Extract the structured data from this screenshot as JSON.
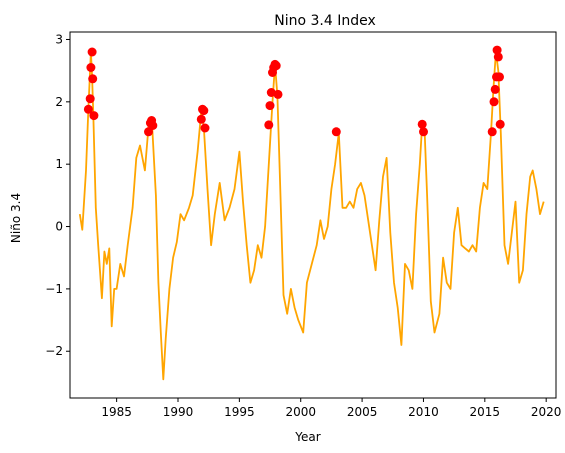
{
  "chart_data": {
    "type": "line",
    "title": "Nino 3.4 Index",
    "xlabel": "Year",
    "ylabel": "Niño 3.4",
    "xlim": [
      1981.2,
      2020.8
    ],
    "ylim": [
      -2.75,
      3.12
    ],
    "xticks": [
      1985,
      1990,
      1995,
      2000,
      2005,
      2010,
      2015,
      2020
    ],
    "yticks": [
      -2,
      -1,
      0,
      1,
      2,
      3
    ],
    "grid": false,
    "colors": {
      "line": "#FFA500",
      "points": "#FF0000"
    },
    "series": [
      {
        "type": "line",
        "x": [
          1982.0,
          1982.2,
          1982.5,
          1982.7,
          1982.9,
          1983.0,
          1983.1,
          1983.3,
          1983.5,
          1983.8,
          1984.0,
          1984.2,
          1984.4,
          1984.6,
          1984.8,
          1985.0,
          1985.3,
          1985.6,
          1985.9,
          1986.3,
          1986.6,
          1986.9,
          1987.3,
          1987.6,
          1987.9,
          1988.2,
          1988.4,
          1988.6,
          1988.8,
          1989.0,
          1989.3,
          1989.6,
          1989.9,
          1990.2,
          1990.5,
          1990.9,
          1991.2,
          1991.6,
          1991.9,
          1992.1,
          1992.4,
          1992.7,
          1993.0,
          1993.4,
          1993.8,
          1994.2,
          1994.6,
          1995.0,
          1995.3,
          1995.6,
          1995.9,
          1996.2,
          1996.5,
          1996.8,
          1997.1,
          1997.4,
          1997.7,
          1997.9,
          1998.1,
          1998.3,
          1998.6,
          1998.9,
          1999.2,
          1999.5,
          1999.8,
          2000.2,
          2000.5,
          2000.9,
          2001.3,
          2001.6,
          2001.9,
          2002.2,
          2002.5,
          2002.8,
          2003.1,
          2003.4,
          2003.7,
          2004.0,
          2004.3,
          2004.6,
          2004.9,
          2005.2,
          2005.5,
          2005.8,
          2006.1,
          2006.4,
          2006.7,
          2007.0,
          2007.3,
          2007.6,
          2007.9,
          2008.2,
          2008.5,
          2008.8,
          2009.1,
          2009.4,
          2009.7,
          2009.9,
          2010.1,
          2010.3,
          2010.6,
          2010.9,
          2011.3,
          2011.6,
          2011.9,
          2012.2,
          2012.5,
          2012.8,
          2013.1,
          2013.4,
          2013.7,
          2014.0,
          2014.3,
          2014.6,
          2014.9,
          2015.2,
          2015.5,
          2015.7,
          2015.9,
          2016.1,
          2016.3,
          2016.6,
          2016.9,
          2017.2,
          2017.5,
          2017.8,
          2018.1,
          2018.4,
          2018.7,
          2018.9,
          2019.2,
          2019.5,
          2019.8
        ],
        "y": [
          0.2,
          -0.05,
          0.9,
          1.9,
          2.8,
          2.4,
          1.8,
          0.3,
          -0.3,
          -1.15,
          -0.4,
          -0.6,
          -0.35,
          -1.6,
          -1.0,
          -1.0,
          -0.6,
          -0.8,
          -0.3,
          0.3,
          1.1,
          1.3,
          0.9,
          1.6,
          1.6,
          0.5,
          -0.9,
          -1.7,
          -2.45,
          -1.8,
          -1.0,
          -0.5,
          -0.25,
          0.2,
          0.1,
          0.3,
          0.5,
          1.2,
          1.85,
          1.6,
          0.6,
          -0.3,
          0.2,
          0.7,
          0.1,
          0.3,
          0.6,
          1.2,
          0.4,
          -0.3,
          -0.9,
          -0.7,
          -0.3,
          -0.5,
          0.0,
          1.0,
          2.0,
          2.6,
          2.1,
          0.8,
          -1.1,
          -1.4,
          -1.0,
          -1.3,
          -1.5,
          -1.7,
          -0.9,
          -0.6,
          -0.3,
          0.1,
          -0.2,
          0.0,
          0.6,
          1.0,
          1.5,
          0.3,
          0.3,
          0.4,
          0.3,
          0.6,
          0.7,
          0.5,
          0.1,
          -0.3,
          -0.7,
          0.1,
          0.8,
          1.1,
          -0.1,
          -0.9,
          -1.3,
          -1.9,
          -0.6,
          -0.7,
          -1.0,
          0.2,
          1.0,
          1.65,
          1.5,
          0.5,
          -1.2,
          -1.7,
          -1.4,
          -0.5,
          -0.9,
          -1.0,
          -0.1,
          0.3,
          -0.3,
          -0.35,
          -0.4,
          -0.3,
          -0.4,
          0.3,
          0.7,
          0.6,
          1.5,
          2.2,
          2.8,
          2.5,
          1.5,
          -0.3,
          -0.6,
          -0.1,
          0.4,
          -0.9,
          -0.7,
          0.2,
          0.8,
          0.9,
          0.6,
          0.2,
          0.4
        ]
      },
      {
        "type": "scatter",
        "x": [
          1982.7,
          1982.85,
          1982.9,
          1983.0,
          1983.05,
          1983.15,
          1987.6,
          1987.75,
          1987.85,
          1987.95,
          1992.0,
          1992.1,
          1992.2,
          1991.9,
          1997.4,
          1997.5,
          1997.6,
          1997.7,
          1997.8,
          1997.9,
          1998.0,
          1998.15,
          2002.9,
          2009.9,
          2010.0,
          2015.6,
          2015.75,
          2015.85,
          2015.95,
          2016.0,
          2016.1,
          2016.2,
          2016.25
        ],
        "y": [
          1.88,
          2.05,
          2.55,
          2.8,
          2.37,
          1.78,
          1.52,
          1.66,
          1.7,
          1.62,
          1.88,
          1.86,
          1.58,
          1.72,
          1.63,
          1.94,
          2.15,
          2.47,
          2.55,
          2.6,
          2.58,
          2.12,
          1.52,
          1.64,
          1.52,
          1.52,
          2.0,
          2.2,
          2.4,
          2.83,
          2.72,
          2.4,
          1.64
        ]
      }
    ]
  }
}
